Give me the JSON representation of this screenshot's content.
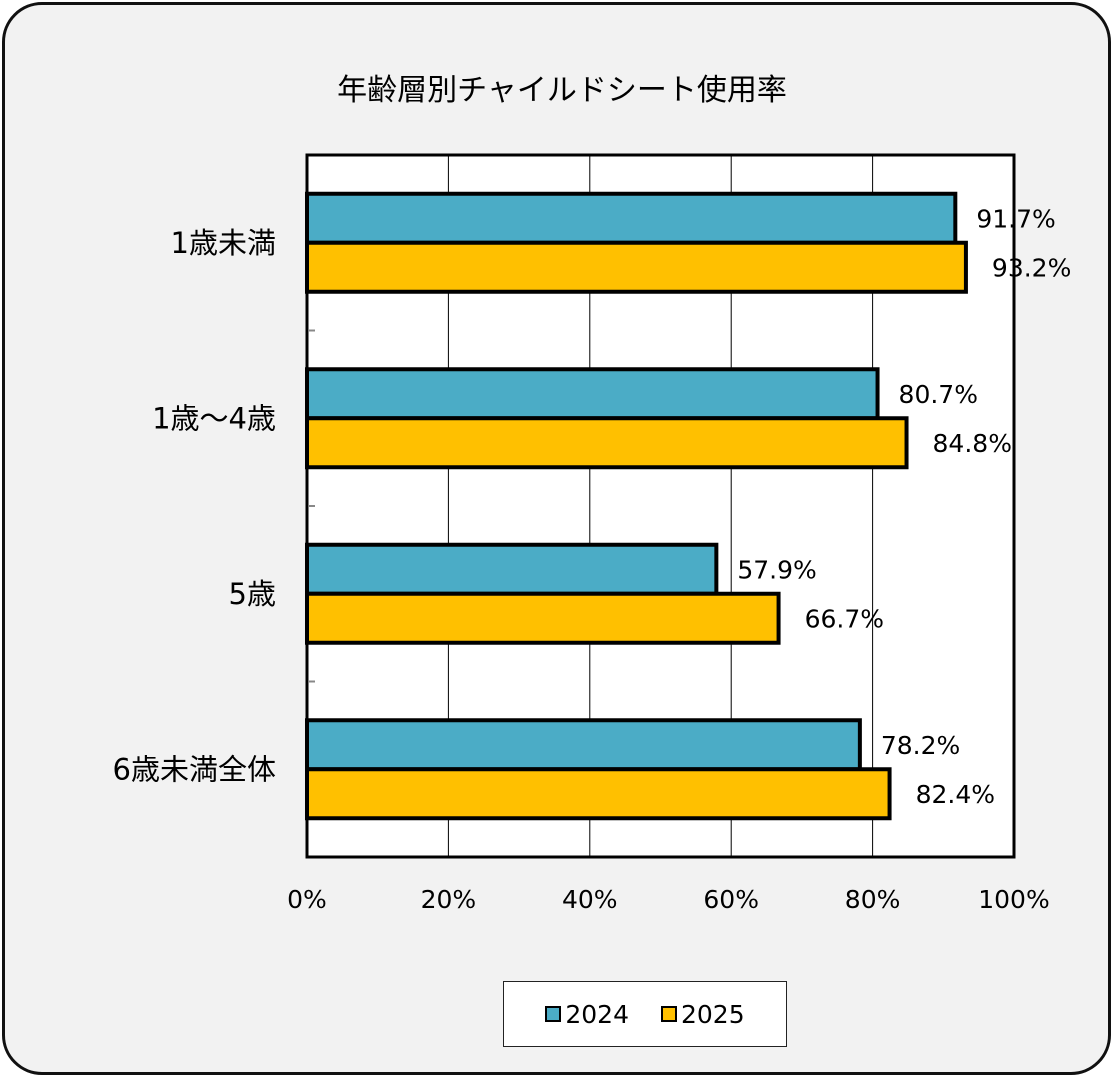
{
  "chart_data": {
    "type": "bar",
    "orientation": "horizontal",
    "title": "年齢層別チャイルドシート使用率",
    "categories": [
      "1歳未満",
      "1歳～4歳",
      "5歳",
      "6歳未満全体"
    ],
    "series": [
      {
        "name": "2024",
        "color": "#4bacc6",
        "values": [
          91.7,
          80.7,
          57.9,
          78.2
        ],
        "labels": [
          "91.7%",
          "80.7%",
          "57.9%",
          "78.2%"
        ]
      },
      {
        "name": "2025",
        "color": "#ffc000",
        "values": [
          93.2,
          84.8,
          66.7,
          82.4
        ],
        "labels": [
          "93.2%",
          "84.8%",
          "66.7%",
          "82.4%"
        ]
      }
    ],
    "xlim": [
      0,
      100
    ],
    "xticks": [
      "0%",
      "20%",
      "40%",
      "60%",
      "80%",
      "100%"
    ],
    "grid": true,
    "legend_position": "bottom"
  }
}
